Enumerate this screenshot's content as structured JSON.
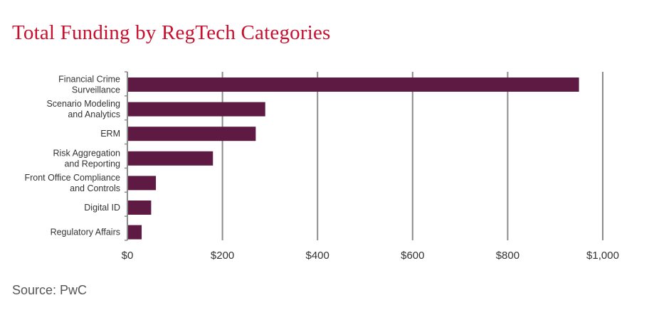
{
  "title": "Total Funding by RegTech Categories",
  "source": "Source: PwC",
  "colors": {
    "title": "#c8102e",
    "bar": "#5e1a43",
    "grid": "#8c8c8c"
  },
  "chart_data": {
    "type": "bar",
    "orientation": "horizontal",
    "categories": [
      [
        "Financial Crime",
        "Surveillance"
      ],
      [
        "Scenario Modeling",
        "and Analytics"
      ],
      [
        "ERM"
      ],
      [
        "Risk Aggregation",
        "and Reporting"
      ],
      [
        "Front Office Compliance",
        "and Controls"
      ],
      [
        "Digital ID"
      ],
      [
        "Regulatory Affairs"
      ]
    ],
    "values": [
      950,
      290,
      270,
      180,
      60,
      50,
      30
    ],
    "xlim": [
      0,
      1000
    ],
    "ticks": [
      0,
      200,
      400,
      600,
      800,
      1000
    ],
    "tick_labels": [
      "$0",
      "$200",
      "$400",
      "$600",
      "$800",
      "$1,000"
    ],
    "grid": true,
    "legend": "none"
  }
}
